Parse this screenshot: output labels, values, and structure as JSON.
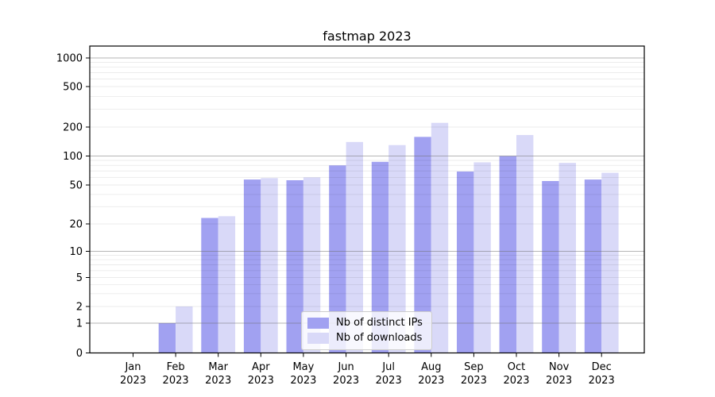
{
  "title": "fastmap 2023",
  "chart_data": {
    "type": "bar",
    "title": "fastmap 2023",
    "categories": [
      "Jan",
      "Feb",
      "Mar",
      "Apr",
      "May",
      "Jun",
      "Jul",
      "Aug",
      "Sep",
      "Oct",
      "Nov",
      "Dec"
    ],
    "category_year": "2023",
    "series": [
      {
        "name": "Nb of distinct IPs",
        "color": "#a1a1f1",
        "values": [
          0,
          1,
          23,
          57,
          56,
          80,
          87,
          158,
          69,
          100,
          55,
          57
        ]
      },
      {
        "name": "Nb of downloads",
        "color": "#d9d9f8",
        "values": [
          0,
          2,
          24,
          59,
          60,
          140,
          130,
          220,
          86,
          165,
          85,
          67
        ]
      }
    ],
    "xlabel": "",
    "ylabel": "",
    "yscale": "symlog",
    "yticks": [
      0,
      1,
      2,
      5,
      10,
      20,
      50,
      100,
      200,
      500,
      1000
    ],
    "major_gridlines": [
      1,
      10,
      100,
      1000
    ],
    "ylim": [
      0,
      1300
    ],
    "grid": true,
    "legend_position": "lower-center-inside"
  }
}
